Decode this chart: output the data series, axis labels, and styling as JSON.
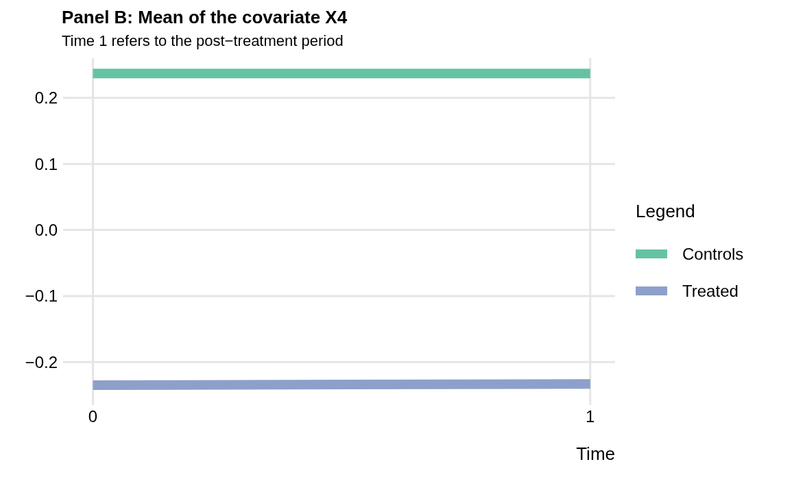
{
  "chart_data": {
    "type": "line",
    "title": "Panel B: Mean of the covariate X4",
    "subtitle": "Time 1 refers to the post−treatment period",
    "xlabel": "Time",
    "legend_title": "Legend",
    "x": [
      0,
      1
    ],
    "series": [
      {
        "name": "Controls",
        "color": "#66c2a5",
        "values": [
          0.237,
          0.237
        ]
      },
      {
        "name": "Treated",
        "color": "#8da0cb",
        "values": [
          -0.235,
          -0.233
        ]
      }
    ],
    "xlim": [
      -0.06,
      1.05
    ],
    "xticks": [
      0,
      1
    ],
    "ylim": [
      -0.265,
      0.26
    ],
    "yticks": [
      {
        "value": -0.2,
        "label": "−0.2"
      },
      {
        "value": -0.1,
        "label": "−0.1"
      },
      {
        "value": 0,
        "label": "0.0"
      },
      {
        "value": 0.1,
        "label": "0.1"
      },
      {
        "value": 0.2,
        "label": "0.2"
      }
    ],
    "grid": true,
    "legend": "right",
    "marker": "none",
    "line_style": "solid"
  }
}
